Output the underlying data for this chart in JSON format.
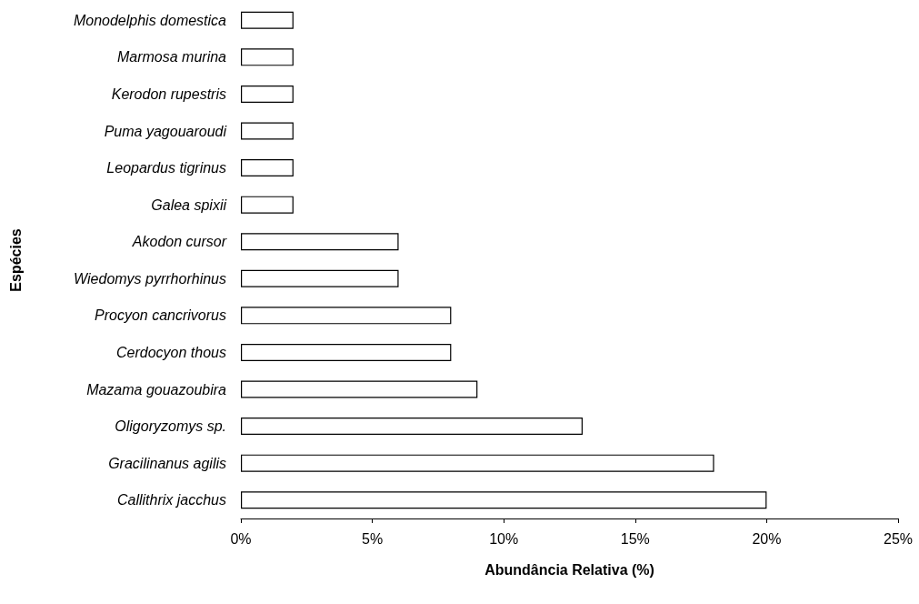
{
  "chart_data": {
    "type": "bar",
    "orientation": "horizontal",
    "xlabel": "Abundância Relativa (%)",
    "ylabel": "Espécies",
    "categories": [
      "Monodelphis domestica",
      "Marmosa murina",
      "Kerodon rupestris",
      "Puma yagouaroudi",
      "Leopardus tigrinus",
      "Galea spixii",
      "Akodon cursor",
      "Wiedomys pyrrhorhinus",
      "Procyon cancrivorus",
      "Cerdocyon thous",
      "Mazama gouazoubira",
      "Oligoryzomys sp.",
      "Gracilinanus agilis",
      "Callithrix jacchus"
    ],
    "values": [
      2,
      2,
      2,
      2,
      2,
      2,
      6,
      6,
      8,
      8,
      9,
      13,
      18,
      20
    ],
    "color": "#ffffff",
    "xlim": [
      0,
      25
    ],
    "xticks": [
      {
        "value": 0,
        "label": "0%"
      },
      {
        "value": 5,
        "label": "5%"
      },
      {
        "value": 10,
        "label": "10%"
      },
      {
        "value": 15,
        "label": "15%"
      },
      {
        "value": 20,
        "label": "20%"
      },
      {
        "value": 25,
        "label": "25%"
      }
    ],
    "grid": false
  }
}
